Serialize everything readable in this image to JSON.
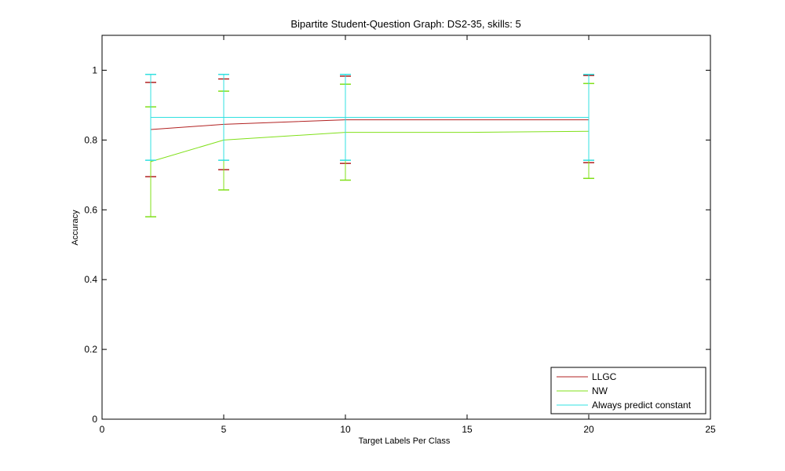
{
  "chart_data": {
    "type": "line",
    "title": "Bipartite Student-Question Graph: DS2-35, skills: 5",
    "xlabel": "Target Labels Per Class",
    "ylabel": "Accuracy",
    "xlim": [
      0,
      25
    ],
    "ylim": [
      0,
      1.1
    ],
    "xticks": [
      0,
      5,
      10,
      15,
      20,
      25
    ],
    "yticks": [
      0,
      0.2,
      0.4,
      0.6,
      0.8,
      1
    ],
    "xtick_labels": [
      "0",
      "5",
      "10",
      "15",
      "20",
      "25"
    ],
    "ytick_labels": [
      "0",
      "0.2",
      "0.4",
      "0.6",
      "0.8",
      "1"
    ],
    "grid": false,
    "legend_position": "bottom-right",
    "series": [
      {
        "name": "LLGC",
        "color": "#b22222",
        "x": [
          2,
          5,
          10,
          15,
          20
        ],
        "y": [
          0.83,
          0.845,
          0.858,
          0.858,
          0.858
        ],
        "error_x": [
          2,
          5,
          10,
          20
        ],
        "error_low": [
          0.695,
          0.715,
          0.733,
          0.735
        ],
        "error_high": [
          0.965,
          0.975,
          0.983,
          0.985
        ]
      },
      {
        "name": "NW",
        "color": "#80e01a",
        "x": [
          2,
          5,
          10,
          15,
          20
        ],
        "y": [
          0.738,
          0.8,
          0.822,
          0.822,
          0.825
        ],
        "error_x": [
          2,
          5,
          10,
          20
        ],
        "error_low": [
          0.58,
          0.657,
          0.685,
          0.69
        ],
        "error_high": [
          0.895,
          0.94,
          0.96,
          0.962
        ]
      },
      {
        "name": "Always predict constant",
        "color": "#30e0e0",
        "x": [
          2,
          5,
          10,
          15,
          20
        ],
        "y": [
          0.865,
          0.865,
          0.865,
          0.865,
          0.865
        ],
        "error_x": [
          2,
          5,
          10,
          20
        ],
        "error_low": [
          0.742,
          0.742,
          0.742,
          0.742
        ],
        "error_high": [
          0.988,
          0.988,
          0.988,
          0.988
        ]
      }
    ]
  }
}
